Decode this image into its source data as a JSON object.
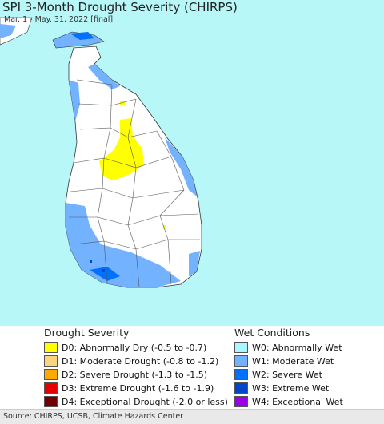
{
  "map": {
    "title": "SPI 3-Month Drought Severity (CHIRPS)",
    "subtitle": "Mar. 1 - May. 31, 2022 [final]",
    "ocean_color": "#b7f7f7",
    "land_color": "#ffffff"
  },
  "legend": {
    "drought_heading": "Drought Severity",
    "wet_heading": "Wet Conditions",
    "drought": [
      {
        "label": "D0: Abnormally Dry (-0.5 to -0.7)",
        "color": "#ffff00"
      },
      {
        "label": "D1: Moderate Drought (-0.8 to -1.2)",
        "color": "#fcd37f"
      },
      {
        "label": "D2: Severe Drought (-1.3 to -1.5)",
        "color": "#ffaa00"
      },
      {
        "label": "D3: Extreme Drought (-1.6 to -1.9)",
        "color": "#e60000"
      },
      {
        "label": "D4: Exceptional Drought (-2.0 or less)",
        "color": "#730000"
      }
    ],
    "wet": [
      {
        "label": "W0: Abnormally Wet",
        "color": "#aaf5ff"
      },
      {
        "label": "W1: Moderate Wet",
        "color": "#73b2ff"
      },
      {
        "label": "W2: Severe Wet",
        "color": "#0070ff"
      },
      {
        "label": "W3: Extreme Wet",
        "color": "#0046c8"
      },
      {
        "label": "W4: Exceptional Wet",
        "color": "#9c00e6"
      }
    ]
  },
  "footer": {
    "source": "Source: CHIRPS, UCSB, Climate Hazards Center"
  }
}
